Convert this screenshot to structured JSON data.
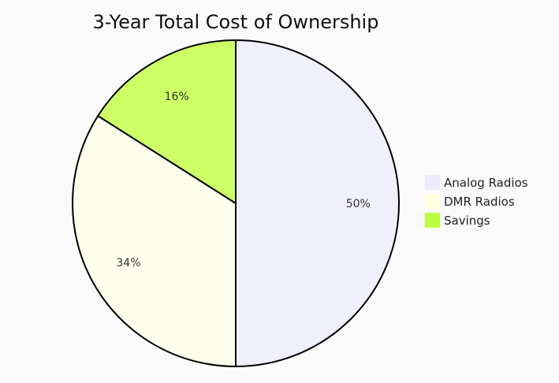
{
  "chart_data": {
    "type": "pie",
    "title": "3-Year Total Cost of Ownership",
    "slices": [
      {
        "label": "Analog Radios",
        "value": 50,
        "display": "50%",
        "color": "#f0f0fd"
      },
      {
        "label": "DMR Radios",
        "value": 34,
        "display": "34%",
        "color": "#fefeec"
      },
      {
        "label": "Savings",
        "value": 16,
        "display": "16%",
        "color": "#ccff66"
      }
    ],
    "legend": {
      "placement": "right",
      "items": [
        {
          "label": "Analog Radios",
          "color": "#ececff"
        },
        {
          "label": "DMR Radios",
          "color": "#ffffde"
        },
        {
          "label": "Savings",
          "color": "#b9ff3f"
        }
      ]
    },
    "stroke_color": "#000000",
    "background": "#fafafa"
  }
}
